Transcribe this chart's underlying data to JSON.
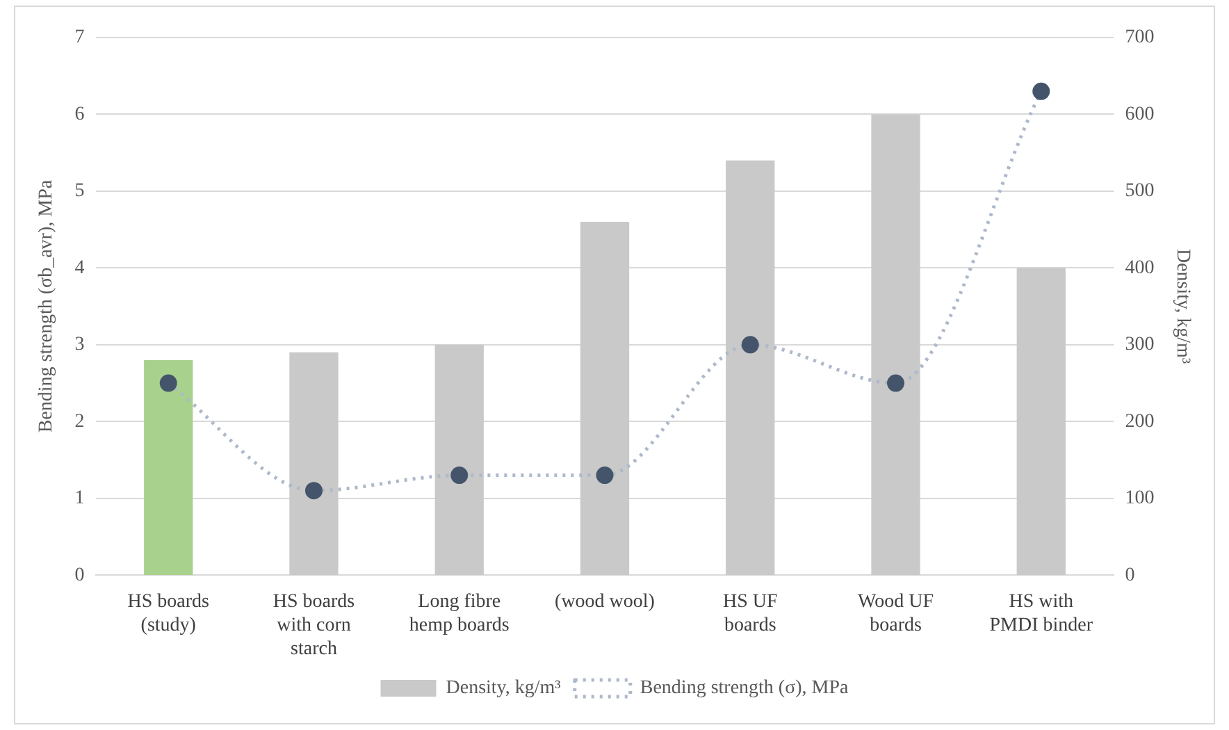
{
  "chart_data": {
    "type": "bar",
    "categories": [
      "HS boards (study)",
      "HS boards with corn starch",
      "Long fibre hemp boards",
      "(wood wool)",
      "HS UF boards",
      "Wood UF boards",
      "HS with PMDI binder"
    ],
    "series": [
      {
        "name": "Density, kg/m³",
        "axis": "y2",
        "color": "#c9c9c9",
        "colors": [
          "#a9d18e",
          "#c9c9c9",
          "#c9c9c9",
          "#c9c9c9",
          "#c9c9c9",
          "#c9c9c9",
          "#c9c9c9"
        ],
        "values": [
          280,
          290,
          300,
          460,
          540,
          600,
          400
        ]
      },
      {
        "name": "Bending strength (σ), MPa",
        "type": "line",
        "axis": "y",
        "color": "#adb9ca",
        "marker": "circle",
        "line_style": "dotted",
        "values": [
          2.5,
          1.1,
          1.3,
          1.3,
          3.0,
          2.5,
          6.3
        ]
      }
    ],
    "ylabel": "Bending strength (σb_avr), MPa",
    "y2label": "Density, kg/m³",
    "ylim": [
      0,
      7
    ],
    "yticks": [
      0,
      1,
      2,
      3,
      4,
      5,
      6,
      7
    ],
    "y2lim": [
      0,
      700
    ],
    "y2ticks": [
      0,
      100,
      200,
      300,
      400,
      500,
      600,
      700
    ],
    "grid": "y",
    "legend": "bottom"
  }
}
